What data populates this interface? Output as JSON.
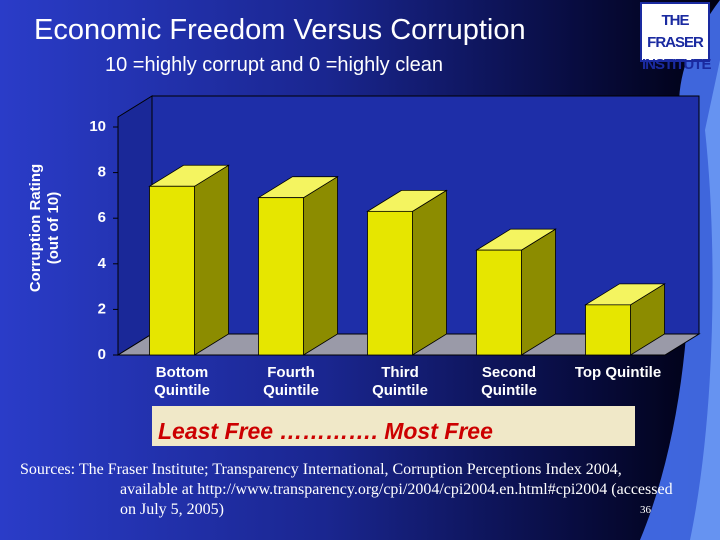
{
  "title": "Economic Freedom Versus Corruption",
  "logo": {
    "line1": "THE FRASER",
    "line2": "INSTITUTE"
  },
  "chart_data": {
    "type": "bar3d",
    "subtitle": "10 =highly corrupt and 0 =highly clean",
    "y_label": "Corruption Rating (out of 10)",
    "categories": [
      "Bottom Quintile",
      "Fourth Quintile",
      "Third Quintile",
      "Second Quintile",
      "Top Quintile"
    ],
    "values": [
      7.4,
      6.9,
      6.3,
      4.6,
      2.2
    ],
    "color": "#e6e600",
    "ylim": [
      0,
      10
    ],
    "yticks": [
      0,
      2,
      4,
      6,
      8,
      10
    ]
  },
  "banner": "Least Free …………. Most Free",
  "sources": "Sources: The Fraser Institute; Transparency International, Corruption Perceptions Index 2004, available at http://www.transparency.org/cpi/2004/cpi2004.en.html#cpi2004 (accessed on July 5, 2005)",
  "slide_number": "36"
}
